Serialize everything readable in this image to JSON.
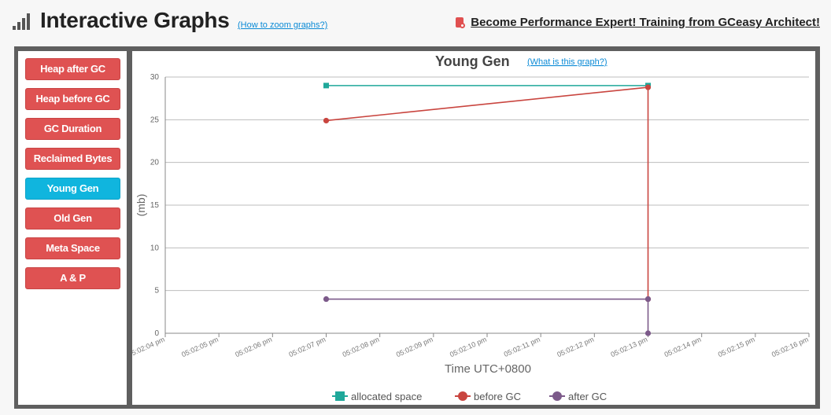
{
  "header": {
    "title": "Interactive Graphs",
    "zoom_link": "(How to zoom graphs?)",
    "promo": "Become Performance Expert! Training from GCeasy Architect!"
  },
  "sidebar": {
    "items": [
      {
        "label": "Heap after GC",
        "active": false
      },
      {
        "label": "Heap before GC",
        "active": false
      },
      {
        "label": "GC Duration",
        "active": false
      },
      {
        "label": "Reclaimed Bytes",
        "active": false
      },
      {
        "label": "Young Gen",
        "active": true
      },
      {
        "label": "Old Gen",
        "active": false
      },
      {
        "label": "Meta Space",
        "active": false
      },
      {
        "label": "A & P",
        "active": false
      }
    ]
  },
  "colors": {
    "allocated": "#1fa89a",
    "before": "#c9453f",
    "after": "#7c5a8a",
    "active_button": "#10b5de",
    "button": "#df5252"
  },
  "chart_data": {
    "type": "line",
    "title": "Young Gen",
    "help_link": "(What is this graph?)",
    "xlabel": "Time UTC+0800",
    "ylabel": "(mb)",
    "ylim": [
      0,
      30
    ],
    "yticks": [
      0,
      5,
      10,
      15,
      20,
      25,
      30
    ],
    "xticks": [
      "05:02:04 pm",
      "05:02:05 pm",
      "05:02:06 pm",
      "05:02:07 pm",
      "05:02:08 pm",
      "05:02:09 pm",
      "05:02:10 pm",
      "05:02:11 pm",
      "05:02:12 pm",
      "05:02:13 pm",
      "05:02:14 pm",
      "05:02:15 pm",
      "05:02:16 pm"
    ],
    "grid": true,
    "legend_position": "bottom",
    "series": [
      {
        "name": "allocated space",
        "marker": "square",
        "color": "#1fa89a",
        "points": [
          {
            "x": "05:02:07 pm",
            "y": 29
          },
          {
            "x": "05:02:13 pm",
            "y": 29
          }
        ]
      },
      {
        "name": "before GC",
        "marker": "circle",
        "color": "#c9453f",
        "points": [
          {
            "x": "05:02:07 pm",
            "y": 24.9
          },
          {
            "x": "05:02:13 pm",
            "y": 28.8
          },
          {
            "x": "05:02:13 pm",
            "y": 4
          }
        ]
      },
      {
        "name": "after GC",
        "marker": "circle",
        "color": "#7c5a8a",
        "points": [
          {
            "x": "05:02:07 pm",
            "y": 4
          },
          {
            "x": "05:02:13 pm",
            "y": 4
          },
          {
            "x": "05:02:13 pm",
            "y": 0
          }
        ]
      }
    ]
  }
}
